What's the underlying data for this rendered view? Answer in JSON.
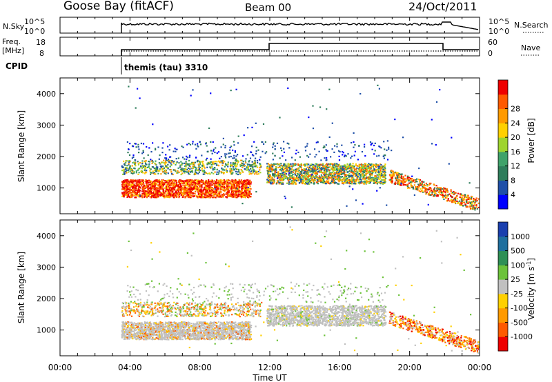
{
  "header": {
    "station": "Goose Bay (fitACF)",
    "beam": "Beam 00",
    "date": "24/Oct/2011"
  },
  "status_panels": {
    "nsky_label": "N.Sky",
    "nsky_ticks": [
      "10^5",
      "10^0"
    ],
    "nsearch_label": "N.Search",
    "nsearch_ticks": [
      "10^5",
      "10^0"
    ],
    "freq_label_1": "Freq.",
    "freq_label_2": "[MHz]",
    "freq_ticks": [
      "18",
      "8"
    ],
    "nave_label": "Nave",
    "nave_ticks": [
      "60",
      "0"
    ],
    "cpid_label": "CPID",
    "cpid_value": "themis (tau) 3310"
  },
  "x_axis": {
    "title": "Time UT",
    "ticks": [
      "00:00",
      "04:00",
      "08:00",
      "12:00",
      "16:00",
      "20:00",
      "00:00"
    ]
  },
  "colors": {
    "power": [
      "#0000ff",
      "#1f4fa8",
      "#2e7d5b",
      "#3fa26a",
      "#9ed42e",
      "#ffd000",
      "#ff9a00",
      "#ff5a00",
      "#ee0000"
    ],
    "velocity": [
      "#1a3fae",
      "#1f6f9e",
      "#2e8f55",
      "#6cc23a",
      "#c0c0c0",
      "#ffd000",
      "#ff9a00",
      "#ff5a00",
      "#ee0000"
    ]
  },
  "chart_data": [
    {
      "type": "heatmap",
      "title": "",
      "xlabel": "Time UT",
      "ylabel": "Slant Range [km]",
      "xlim": [
        0,
        24
      ],
      "ylim": [
        180,
        4500
      ],
      "y_ticks": [
        "1000",
        "2000",
        "3000",
        "4000"
      ],
      "colorbar": {
        "label": "Power [dB]",
        "ticks": [
          "4",
          "8",
          "12",
          "16",
          "20",
          "24",
          "28"
        ],
        "range": [
          0,
          30
        ]
      },
      "scatter_regions": [
        {
          "t": [
            3.5,
            10.9
          ],
          "r": [
            750,
            1250
          ],
          "value": "strong"
        },
        {
          "t": [
            3.5,
            11.5
          ],
          "r": [
            1500,
            1900
          ],
          "value": "weak"
        },
        {
          "t": [
            11.8,
            18.6
          ],
          "r": [
            1200,
            1800
          ],
          "value": "moderate"
        },
        {
          "t": [
            18.8,
            24.0
          ],
          "r": [
            300,
            1400
          ],
          "value": "moderate"
        }
      ]
    },
    {
      "type": "heatmap",
      "title": "",
      "xlabel": "Time UT",
      "ylabel": "Slant Range [km]",
      "xlim": [
        0,
        24
      ],
      "ylim": [
        180,
        4500
      ],
      "y_ticks": [
        "1000",
        "2000",
        "3000",
        "4000"
      ],
      "colorbar": {
        "label": "Velocity [m s^-1]",
        "ticks": [
          "1000",
          "500",
          "100",
          "25",
          "-25",
          "-100",
          "-500",
          "-1000"
        ],
        "range": [
          -1250,
          1250
        ]
      },
      "scatter_regions": [
        {
          "t": [
            3.5,
            10.9
          ],
          "r": [
            750,
            1250
          ],
          "value": "ground"
        },
        {
          "t": [
            5.5,
            10.5
          ],
          "r": [
            1300,
            2000
          ],
          "value": "negative"
        },
        {
          "t": [
            11.8,
            18.6
          ],
          "r": [
            1200,
            1800
          ],
          "value": "ground"
        },
        {
          "t": [
            18.8,
            24.0
          ],
          "r": [
            300,
            1400
          ],
          "value": "negative"
        }
      ]
    }
  ]
}
